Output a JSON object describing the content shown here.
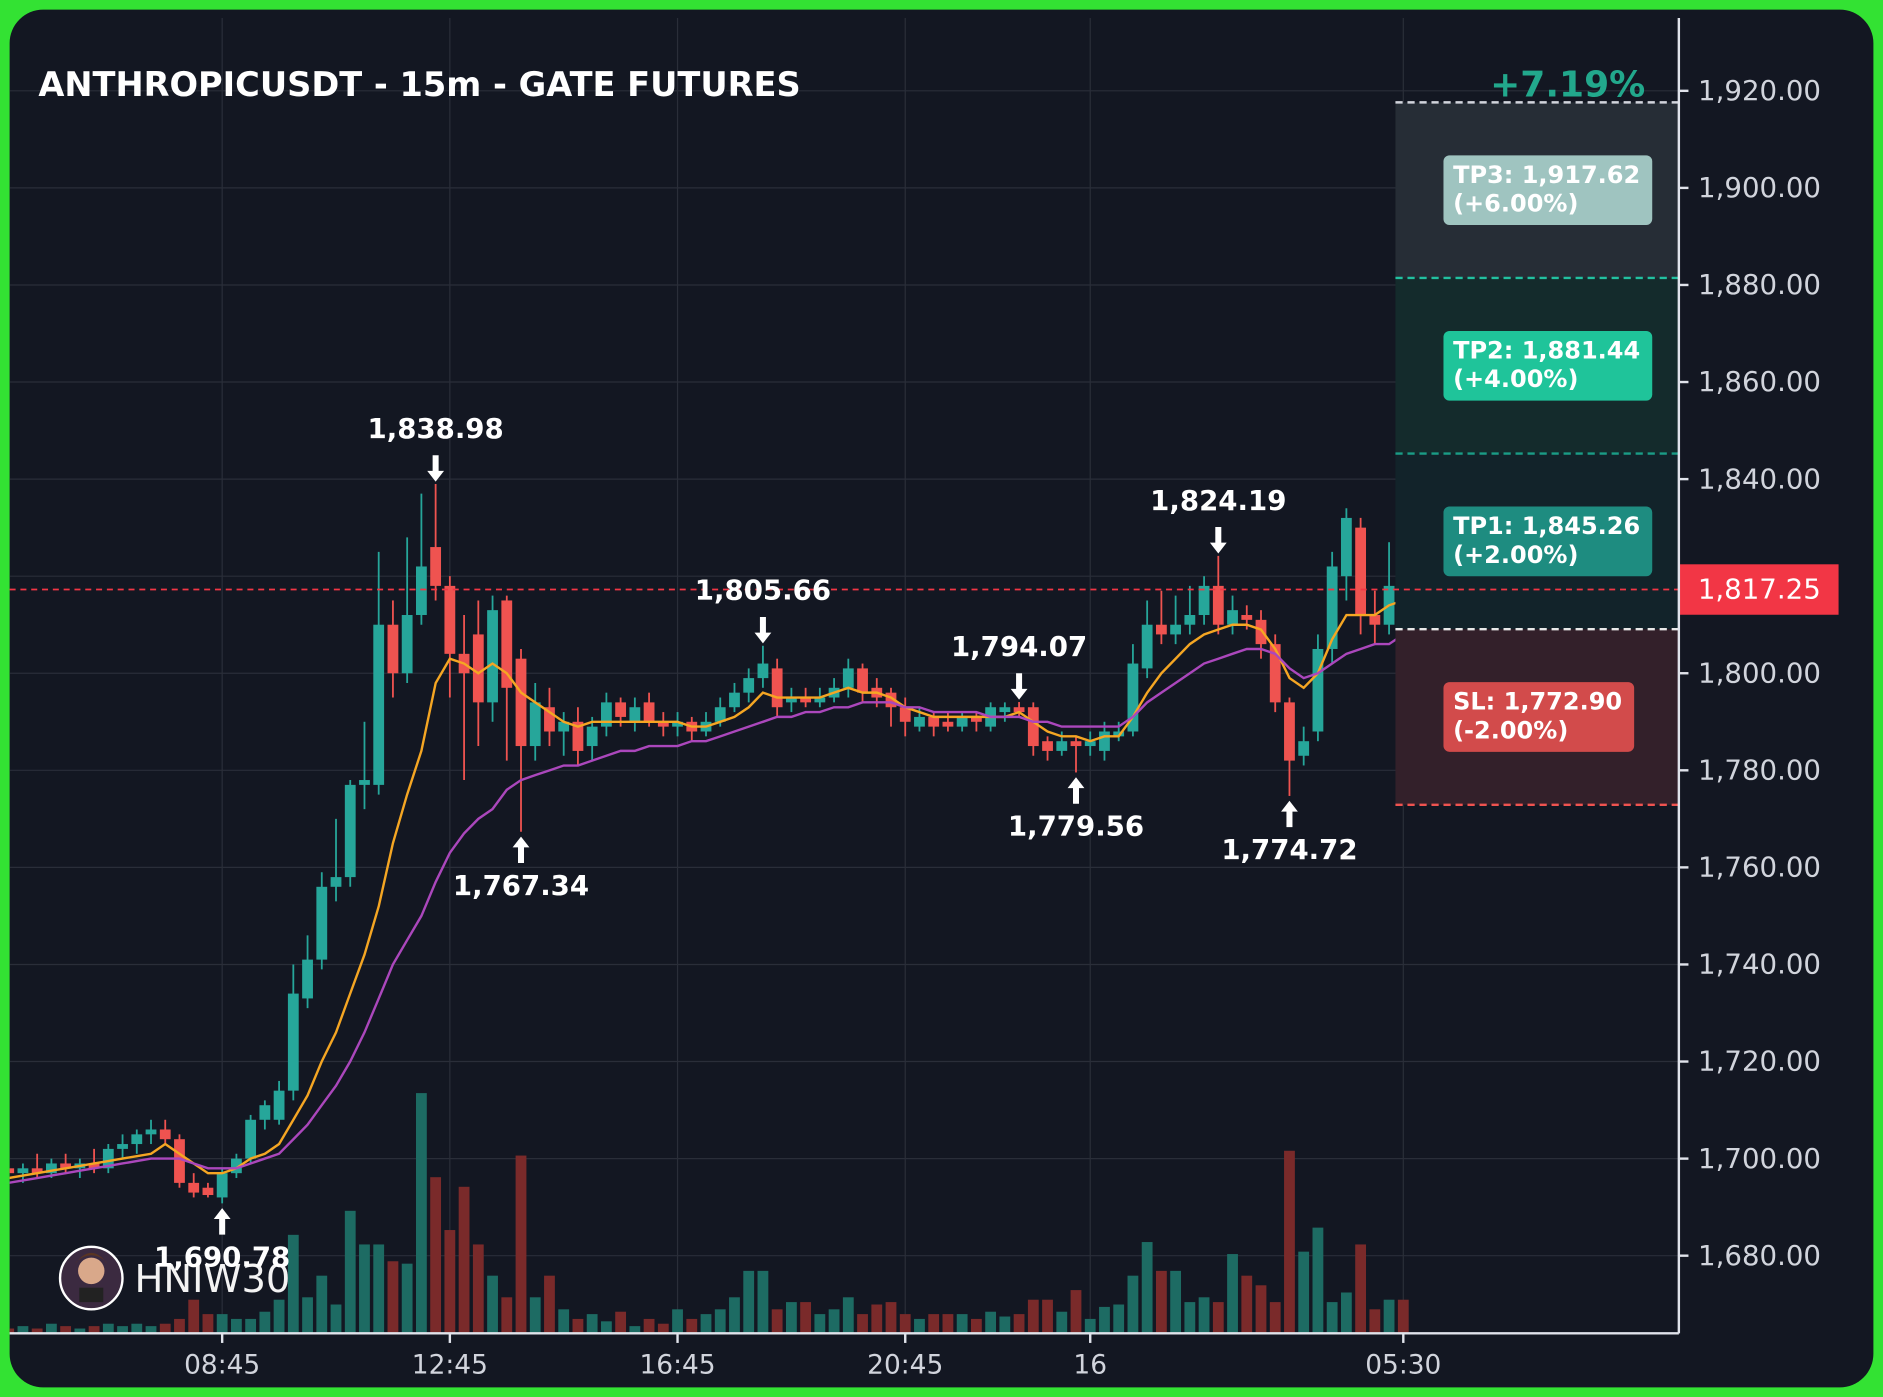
{
  "chart_data": {
    "type": "candlestick",
    "title": "ANTHROPICUSDT - 15m - GATE FUTURES",
    "change": {
      "value": 7.19,
      "label": "+7.19%",
      "color": "#22a88c"
    },
    "watermark": "HNIW30",
    "categories": [
      null,
      null,
      null,
      null,
      null,
      null,
      null,
      null,
      null,
      null,
      null,
      null,
      null,
      null,
      null,
      "08:45",
      null,
      null,
      null,
      null,
      null,
      null,
      null,
      null,
      null,
      null,
      null,
      null,
      null,
      null,
      null,
      "12:45",
      null,
      null,
      null,
      null,
      null,
      null,
      null,
      null,
      null,
      null,
      null,
      null,
      null,
      null,
      null,
      "16:45",
      null,
      null,
      null,
      null,
      null,
      null,
      null,
      null,
      null,
      null,
      null,
      null,
      null,
      null,
      null,
      "20:45",
      null,
      null,
      null,
      null,
      null,
      null,
      null,
      null,
      null,
      null,
      null,
      null,
      "16",
      null,
      null,
      null,
      null,
      null,
      null,
      null,
      null,
      null,
      null,
      null,
      null,
      null,
      null,
      null,
      null,
      null,
      null,
      null,
      null,
      null,
      "05:30"
    ],
    "open": [
      1698,
      1697,
      1698,
      1697,
      1699,
      1698,
      1699,
      1698,
      1702,
      1703,
      1705,
      1706,
      1704,
      1695,
      1694,
      1692,
      1697,
      1700,
      1708,
      1708,
      1714,
      1733,
      1741,
      1756,
      1758,
      1777,
      1777,
      1810,
      1800,
      1812,
      1826,
      1818,
      1804,
      1808,
      1794,
      1815,
      1803,
      1785,
      1793,
      1788,
      1790,
      1785,
      1789,
      1794,
      1790,
      1794,
      1790,
      1789,
      1790,
      1788,
      1790,
      1793,
      1796,
      1799,
      1801,
      1794,
      1795,
      1794,
      1795,
      1797,
      1801,
      1797,
      1796,
      1793,
      1789,
      1791,
      1790,
      1789,
      1791,
      1789,
      1792,
      1793,
      1793,
      1786,
      1784,
      1786,
      1785,
      1784,
      1787,
      1788,
      1801,
      1810,
      1808,
      1810,
      1812,
      1818,
      1810,
      1812,
      1811,
      1806,
      1794,
      1783,
      1788,
      1805,
      1820,
      1830,
      1812,
      1810,
      1818
    ],
    "high": [
      1700,
      1699,
      1701,
      1700,
      1701,
      1700,
      1702,
      1703,
      1705,
      1706,
      1708,
      1708,
      1705,
      1697,
      1695,
      1698,
      1701,
      1709,
      1712,
      1716,
      1740,
      1746,
      1759,
      1770,
      1778,
      1790,
      1825,
      1815,
      1828,
      1837,
      1838.98,
      1820,
      1812,
      1815,
      1816,
      1816,
      1805,
      1798,
      1797,
      1792,
      1793,
      1791,
      1796,
      1795,
      1795,
      1796,
      1792,
      1792,
      1791,
      1792,
      1795,
      1798,
      1801,
      1805.66,
      1803,
      1797,
      1797,
      1797,
      1799,
      1803,
      1802,
      1799,
      1797,
      1795,
      1793,
      1792,
      1792,
      1792,
      1792,
      1794,
      1794,
      1794.07,
      1794,
      1787,
      1788,
      1787,
      1788,
      1790,
      1790,
      1806,
      1815,
      1817,
      1816,
      1818,
      1820,
      1824.19,
      1816,
      1814,
      1813,
      1808,
      1795,
      1789,
      1808,
      1825,
      1834,
      1832,
      1817,
      1827,
      1819
    ],
    "low": [
      1696,
      1695,
      1696,
      1696,
      1697,
      1696,
      1697,
      1697,
      1700,
      1701,
      1703,
      1703,
      1694,
      1692,
      1692,
      1690.78,
      1696,
      1699,
      1706,
      1707,
      1712,
      1731,
      1739,
      1753,
      1756,
      1772,
      1775,
      1795,
      1798,
      1810,
      1815,
      1795,
      1778,
      1785,
      1790,
      1782,
      1767.34,
      1782,
      1785,
      1783,
      1781,
      1782,
      1787,
      1789,
      1788,
      1789,
      1787,
      1787,
      1786,
      1787,
      1789,
      1792,
      1794,
      1797,
      1791,
      1792,
      1793,
      1793,
      1794,
      1795,
      1794,
      1793,
      1789,
      1787,
      1788,
      1787,
      1788,
      1788,
      1788,
      1788,
      1790,
      1791,
      1783,
      1782,
      1783,
      1779.56,
      1783,
      1782,
      1786,
      1787,
      1799,
      1806,
      1806,
      1808,
      1810,
      1808,
      1808,
      1809,
      1803,
      1792,
      1774.72,
      1781,
      1786,
      1802,
      1815,
      1808,
      1806,
      1808,
      1816
    ],
    "close": [
      1697,
      1698,
      1697,
      1699,
      1698,
      1699,
      1698,
      1702,
      1703,
      1705,
      1706,
      1704,
      1695,
      1693,
      1692.5,
      1697,
      1700,
      1708,
      1711,
      1714,
      1734,
      1741,
      1756,
      1758,
      1777,
      1778,
      1810,
      1800,
      1812,
      1822,
      1818,
      1804,
      1800,
      1794,
      1813,
      1797,
      1785,
      1794,
      1788,
      1790,
      1784,
      1789,
      1794,
      1791,
      1793,
      1790,
      1789,
      1790,
      1788,
      1790,
      1793,
      1796,
      1799,
      1802,
      1793,
      1795,
      1794,
      1795,
      1797,
      1801,
      1796,
      1795,
      1793,
      1790,
      1791,
      1789,
      1789,
      1791,
      1790,
      1793,
      1793,
      1792,
      1785,
      1784,
      1786,
      1785,
      1786,
      1788,
      1788,
      1802,
      1810,
      1808,
      1810,
      1812,
      1818,
      1810,
      1813,
      1811,
      1806,
      1794,
      1782,
      1786,
      1805,
      1822,
      1832,
      1812,
      1810,
      1818,
      1817.25
    ],
    "volume": [
      2,
      3,
      2,
      4,
      3,
      2,
      3,
      4,
      3,
      4,
      3,
      4,
      6,
      14,
      8,
      8,
      6,
      6,
      9,
      14,
      41,
      15,
      24,
      12,
      51,
      37,
      37,
      30,
      29,
      100,
      65,
      43,
      61,
      37,
      24,
      15,
      74,
      15,
      24,
      10,
      6,
      8,
      5,
      9,
      3,
      6,
      4,
      10,
      6,
      8,
      10,
      15,
      26,
      26,
      10,
      13,
      13,
      8,
      10,
      15,
      8,
      12,
      13,
      8,
      6,
      8,
      8,
      8,
      6,
      9,
      7,
      8,
      14,
      14,
      9,
      18,
      6,
      11,
      12,
      24,
      38,
      26,
      26,
      13,
      15,
      13,
      33,
      24,
      20,
      13,
      76,
      34,
      44,
      13,
      17,
      37,
      10,
      14,
      14
    ],
    "up_color": "#26a69a",
    "down_color": "#ef5350",
    "volume_up_color": "#1d6b63",
    "volume_down_color": "#7a2a2a",
    "ema_fast": {
      "color": "#f5a623",
      "values": [
        1696,
        1696.5,
        1697,
        1697.5,
        1698,
        1698.5,
        1699,
        1699.5,
        1700,
        1700.5,
        1701,
        1703,
        1701,
        1699,
        1697,
        1697,
        1698,
        1700,
        1701,
        1703,
        1708,
        1713,
        1720,
        1726,
        1734,
        1742,
        1752,
        1765,
        1775,
        1784,
        1798,
        1803,
        1802,
        1800,
        1802,
        1800,
        1796,
        1794,
        1792,
        1790,
        1789,
        1790,
        1790,
        1790,
        1790,
        1790,
        1790,
        1790,
        1789,
        1789,
        1790,
        1791,
        1793,
        1796,
        1795,
        1795,
        1795,
        1795,
        1796,
        1797,
        1796,
        1796,
        1795,
        1793,
        1792,
        1791,
        1791,
        1791,
        1791,
        1791,
        1791,
        1792,
        1790,
        1788,
        1787,
        1787,
        1786,
        1787,
        1787,
        1791,
        1796,
        1800,
        1803,
        1806,
        1808,
        1809,
        1810,
        1810,
        1809,
        1805,
        1799,
        1797,
        1800,
        1807,
        1812,
        1812,
        1812,
        1814,
        1815
      ]
    },
    "ema_slow": {
      "color": "#ab47bc",
      "values": [
        1695,
        1695.5,
        1696,
        1696.5,
        1697,
        1697.5,
        1698,
        1698.5,
        1699,
        1699.5,
        1700,
        1700,
        1700,
        1699,
        1698,
        1698,
        1698,
        1699,
        1700,
        1701,
        1704,
        1707,
        1711,
        1715,
        1720,
        1726,
        1733,
        1740,
        1745,
        1750,
        1757,
        1763,
        1767,
        1770,
        1772,
        1776,
        1778,
        1779,
        1780,
        1781,
        1781,
        1782,
        1783,
        1784,
        1784,
        1785,
        1785,
        1785,
        1786,
        1786,
        1787,
        1788,
        1789,
        1790,
        1791,
        1791,
        1792,
        1792,
        1793,
        1793,
        1794,
        1794,
        1794,
        1793,
        1793,
        1792,
        1792,
        1792,
        1792,
        1791,
        1791,
        1791,
        1790,
        1790,
        1789,
        1789,
        1789,
        1789,
        1789,
        1791,
        1794,
        1796,
        1798,
        1800,
        1802,
        1803,
        1804,
        1805,
        1805,
        1804,
        1801,
        1799,
        1800,
        1802,
        1804,
        1805,
        1806,
        1806,
        1808
      ]
    },
    "annotations": [
      {
        "index": 30,
        "value": 1838.98,
        "label": "1,838.98",
        "kind": "high"
      },
      {
        "index": 36,
        "value": 1767.34,
        "label": "1,767.34",
        "kind": "low"
      },
      {
        "index": 53,
        "value": 1805.66,
        "label": "1,805.66",
        "kind": "high"
      },
      {
        "index": 71,
        "value": 1794.07,
        "label": "1,794.07",
        "kind": "high"
      },
      {
        "index": 75,
        "value": 1779.56,
        "label": "1,779.56",
        "kind": "low"
      },
      {
        "index": 85,
        "value": 1824.19,
        "label": "1,824.19",
        "kind": "high"
      },
      {
        "index": 90,
        "value": 1774.72,
        "label": "1,774.72",
        "kind": "low"
      },
      {
        "index": 15,
        "value": 1690.78,
        "label": "1,690.78",
        "kind": "low"
      }
    ],
    "last_price": {
      "value": 1817.25,
      "label": "1,817.25",
      "color": "#f23645"
    },
    "entry": {
      "value": 1809.08,
      "color": "#e8e8e8"
    },
    "levels": [
      {
        "kind": "tp",
        "label": "TP3: 1,917.62",
        "value": 1917.62,
        "change": {
          "value": 6,
          "label": "(+6.00%)"
        },
        "color": "#9fc4c0",
        "line_color": "#d1d4dc",
        "zone_color": "#262d36"
      },
      {
        "kind": "tp",
        "label": "TP2: 1,881.44",
        "value": 1881.44,
        "change": {
          "value": 4,
          "label": "(+4.00%)"
        },
        "color": "#1fc49a",
        "line_color": "#22c0a0",
        "zone_color": "#142b2c"
      },
      {
        "kind": "tp",
        "label": "TP1: 1,845.26",
        "value": 1845.26,
        "change": {
          "value": 2,
          "label": "(+2.00%)"
        },
        "color": "#1e8c80",
        "line_color": "#1a9c86",
        "zone_color": "#12232a"
      },
      {
        "kind": "sl",
        "label": "SL: 1,772.90",
        "value": 1772.9,
        "change": {
          "value": -2,
          "label": "(-2.00%)"
        },
        "color": "#d24b4b",
        "line_color": "#ef5350",
        "zone_color": "#33202a"
      }
    ],
    "ylim": [
      1664,
      1935
    ],
    "yticks": [
      {
        "value": 1680,
        "label": "1,680.00"
      },
      {
        "value": 1700,
        "label": "1,700.00"
      },
      {
        "value": 1720,
        "label": "1,720.00"
      },
      {
        "value": 1740,
        "label": "1,740.00"
      },
      {
        "value": 1760,
        "label": "1,760.00"
      },
      {
        "value": 1780,
        "label": "1,780.00"
      },
      {
        "value": 1800,
        "label": "1,800.00"
      },
      {
        "value": 1820,
        "label": "1,820.00"
      },
      {
        "value": 1840,
        "label": "1,840.00"
      },
      {
        "value": 1860,
        "label": "1,860.00"
      },
      {
        "value": 1880,
        "label": "1,880.00"
      },
      {
        "value": 1900,
        "label": "1,900.00"
      },
      {
        "value": 1920,
        "label": "1,920.00"
      }
    ],
    "grid": true
  }
}
